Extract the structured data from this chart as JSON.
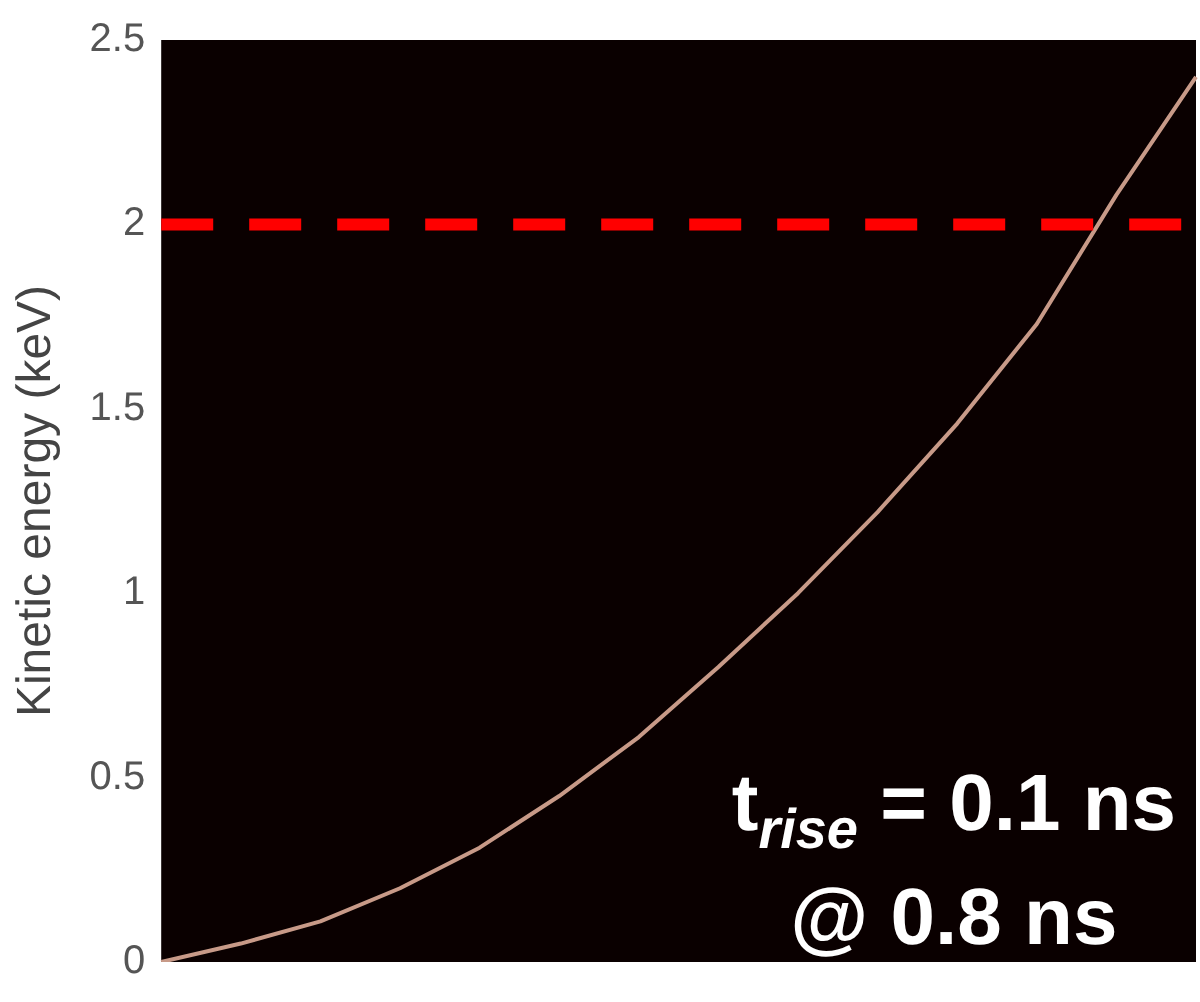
{
  "chart_data": {
    "type": "line",
    "ylabel": "Kinetic energy (keV)",
    "categories": [
      null,
      null,
      null,
      null,
      null,
      null,
      null,
      null,
      null,
      null,
      null,
      null,
      null,
      null
    ],
    "series": [
      {
        "color": "#c89a88",
        "values": [
          0,
          0.05,
          0.11,
          0.2,
          0.31,
          0.45,
          0.61,
          0.8,
          1.0,
          1.22,
          1.46,
          1.73,
          2.08,
          2.4
        ]
      }
    ],
    "ylim": [
      0,
      2.5
    ],
    "yticks": [
      0,
      0.5,
      1,
      1.5,
      2,
      2.5
    ],
    "grid": false,
    "legend": false,
    "marker": "none",
    "line_style": "solid",
    "ref_lines": [
      {
        "axis": "y",
        "value": 2,
        "color": "#ff0000",
        "line_style": "dashed"
      }
    ],
    "annotations": [
      "t$_{rise}$ = 0.1 ns",
      "@ 0.8 ns"
    ]
  }
}
